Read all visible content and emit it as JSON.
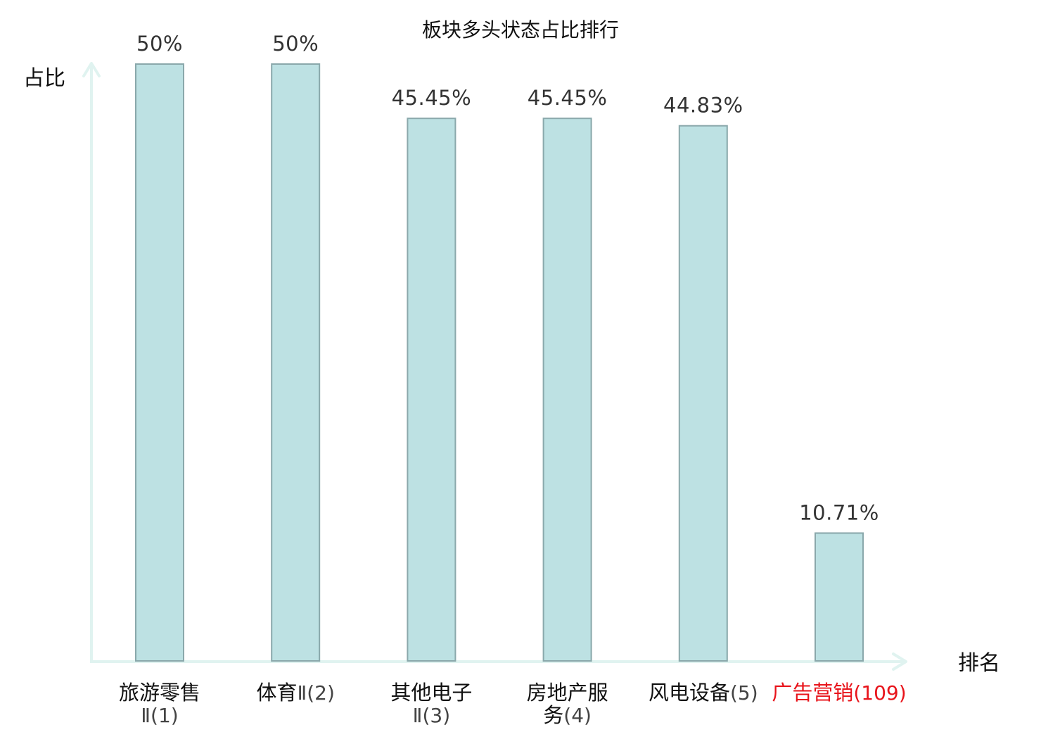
{
  "chart_data": {
    "type": "bar",
    "title": "板块多头状态占比排行",
    "ylabel": "占比",
    "xlabel": "排名",
    "ylim": [
      0,
      50
    ],
    "categories": [
      {
        "lines": [
          {
            "name": "旅游零售",
            "rank": ""
          },
          {
            "name": "",
            "rank": "Ⅱ(1)"
          }
        ],
        "highlight": false
      },
      {
        "lines": [
          {
            "name": "体育",
            "rank": "Ⅱ(2)"
          }
        ],
        "highlight": false
      },
      {
        "lines": [
          {
            "name": "其他电子",
            "rank": ""
          },
          {
            "name": "",
            "rank": "Ⅱ(3)"
          }
        ],
        "highlight": false
      },
      {
        "lines": [
          {
            "name": "房地产服",
            "rank": ""
          },
          {
            "name": "务",
            "rank": "(4)"
          }
        ],
        "highlight": false
      },
      {
        "lines": [
          {
            "name": "风电设备",
            "rank": "(5)"
          }
        ],
        "highlight": false
      },
      {
        "lines": [
          {
            "name": "广告营销",
            "rank": "(109)"
          }
        ],
        "highlight": true
      }
    ],
    "values": [
      50,
      50,
      45.45,
      45.45,
      44.83,
      10.71
    ],
    "value_labels": [
      "50%",
      "50%",
      "45.45%",
      "45.45%",
      "44.83%",
      "10.71%"
    ],
    "colors": {
      "bar_fill": "#bde1e3",
      "bar_stroke": "#8aa8ab",
      "axis": "#e0f3f0",
      "text": "#111111",
      "rank_text": "#444444",
      "highlight": "#e8141b"
    }
  }
}
